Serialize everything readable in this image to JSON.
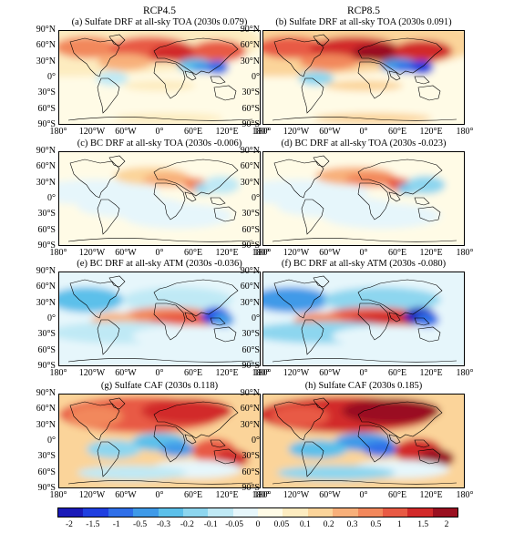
{
  "columns": [
    "RCP4.5",
    "RCP8.5"
  ],
  "panels": [
    {
      "title": "(a) Sulfate DRF at all-sky TOA (2030s 0.079)",
      "variable": "sulfate-drf-toa",
      "scenario": "RCP4.5"
    },
    {
      "title": "(b) Sulfate DRF at all-sky TOA (2030s 0.091)",
      "variable": "sulfate-drf-toa",
      "scenario": "RCP8.5"
    },
    {
      "title": "(c) BC DRF at all-sky TOA (2030s -0.006)",
      "variable": "bc-drf-toa",
      "scenario": "RCP4.5"
    },
    {
      "title": "(d) BC DRF at all-sky TOA (2030s -0.023)",
      "variable": "bc-drf-toa",
      "scenario": "RCP8.5"
    },
    {
      "title": "(e) BC DRF at all-sky ATM (2030s -0.036)",
      "variable": "bc-drf-atm",
      "scenario": "RCP4.5"
    },
    {
      "title": "(f) BC DRF at all-sky ATM (2030s -0.080)",
      "variable": "bc-drf-atm",
      "scenario": "RCP8.5"
    },
    {
      "title": "(g) Sulfate CAF (2030s 0.118)",
      "variable": "sulfate-caf",
      "scenario": "RCP4.5"
    },
    {
      "title": "(h) Sulfate CAF (2030s 0.185)",
      "variable": "sulfate-caf",
      "scenario": "RCP8.5"
    }
  ],
  "lat_ticks": [
    "90°N",
    "60°N",
    "30°N",
    "0°",
    "30°S",
    "60°S",
    "90°S"
  ],
  "lon_ticks": [
    "180°",
    "120°W",
    "60°W",
    "0°",
    "60°E",
    "120°E",
    "180°"
  ],
  "colorbar": {
    "labels": [
      "-2",
      "-1.5",
      "-1",
      "-0.5",
      "-0.3",
      "-0.2",
      "-0.1",
      "-0.05",
      "0",
      "0.05",
      "0.1",
      "0.2",
      "0.3",
      "0.5",
      "1",
      "1.5",
      "2"
    ],
    "colors": [
      "#1a1ab8",
      "#1f3fe0",
      "#2f6fe8",
      "#3f9ae8",
      "#5cc0ea",
      "#8dd6ef",
      "#bfe9f5",
      "#e6f6fb",
      "#fffbe6",
      "#fdecc0",
      "#fbd49a",
      "#f8b07a",
      "#f2885c",
      "#e85a44",
      "#d22a2a",
      "#9a1020"
    ]
  }
}
